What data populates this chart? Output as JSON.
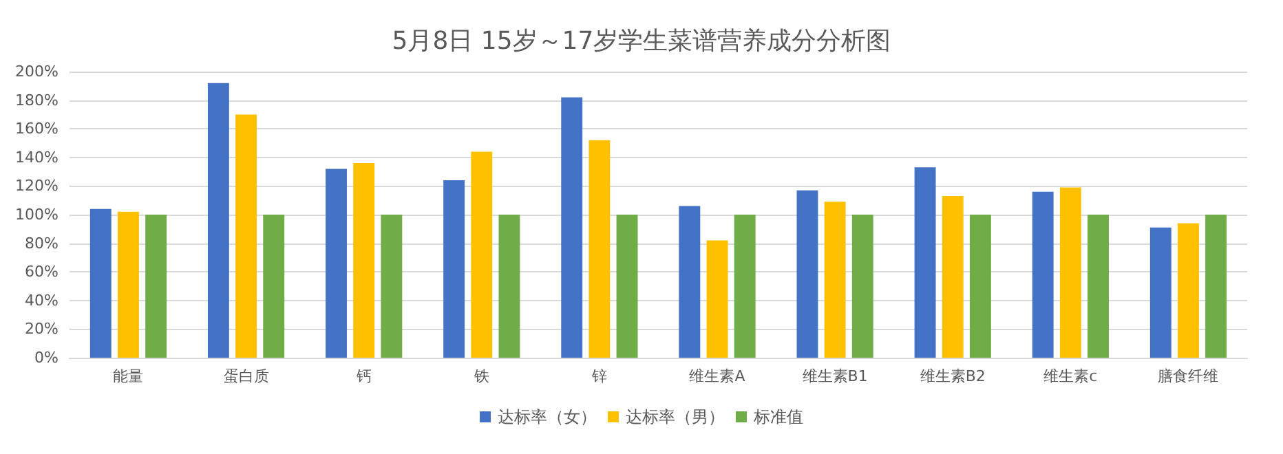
{
  "chart_data": {
    "type": "bar",
    "title": "5月8日 15岁～17岁学生菜谱营养成分分析图",
    "categories": [
      "能量",
      "蛋白质",
      "钙",
      "铁",
      "锌",
      "维生素A",
      "维生素B1",
      "维生素B2",
      "维生素c",
      "膳食纤维"
    ],
    "series": [
      {
        "name": "达标率（女）",
        "color": "#4472c4",
        "values": [
          104,
          192,
          132,
          124,
          182,
          106,
          117,
          133,
          116,
          91
        ]
      },
      {
        "name": "达标率（男）",
        "color": "#ffc000",
        "values": [
          102,
          170,
          136,
          144,
          152,
          82,
          109,
          113,
          119,
          94
        ]
      },
      {
        "name": "标准值",
        "color": "#70ad47",
        "values": [
          100,
          100,
          100,
          100,
          100,
          100,
          100,
          100,
          100,
          100
        ]
      }
    ],
    "ylim": [
      0,
      200
    ],
    "yticks": [
      {
        "value": 0,
        "label": "0%"
      },
      {
        "value": 20,
        "label": "20%"
      },
      {
        "value": 40,
        "label": "40%"
      },
      {
        "value": 60,
        "label": "60%"
      },
      {
        "value": 80,
        "label": "80%"
      },
      {
        "value": 100,
        "label": "100%"
      },
      {
        "value": 120,
        "label": "120%"
      },
      {
        "value": 140,
        "label": "140%"
      },
      {
        "value": 160,
        "label": "160%"
      },
      {
        "value": 180,
        "label": "180%"
      },
      {
        "value": 200,
        "label": "200%"
      }
    ],
    "grid": "y",
    "legend": "bottom"
  }
}
